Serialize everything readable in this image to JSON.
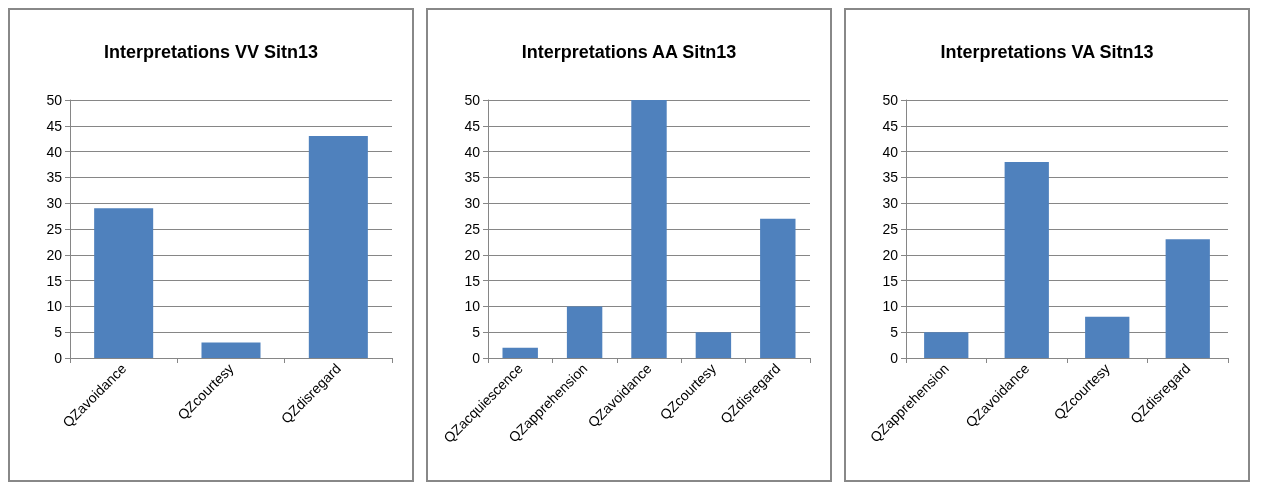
{
  "chart_data": [
    {
      "type": "bar",
      "title": "Interpretations VV Sitn13",
      "categories": [
        "QZavoidance",
        "QZcourtesy",
        "QZdisregard"
      ],
      "values": [
        29,
        3,
        43
      ],
      "color": "#4f81bd",
      "ylim": [
        0,
        50
      ],
      "yticks": [
        0,
        5,
        10,
        15,
        20,
        25,
        30,
        35,
        40,
        45,
        50
      ],
      "grid": "y"
    },
    {
      "type": "bar",
      "title": "Interpretations AA Sitn13",
      "categories": [
        "QZacquiescence",
        "QZapprehension",
        "QZavoidance",
        "QZcourtesy",
        "QZdisregard"
      ],
      "values": [
        2,
        10,
        50,
        5,
        27
      ],
      "color": "#4f81bd",
      "ylim": [
        0,
        50
      ],
      "yticks": [
        0,
        5,
        10,
        15,
        20,
        25,
        30,
        35,
        40,
        45,
        50
      ],
      "grid": "y"
    },
    {
      "type": "bar",
      "title": "Interpretations VA Sitn13",
      "categories": [
        "QZapprehension",
        "QZavoidance",
        "QZcourtesy",
        "QZdisregard"
      ],
      "values": [
        5,
        38,
        8,
        23
      ],
      "color": "#4f81bd",
      "ylim": [
        0,
        50
      ],
      "yticks": [
        0,
        5,
        10,
        15,
        20,
        25,
        30,
        35,
        40,
        45,
        50
      ],
      "grid": "y"
    }
  ]
}
